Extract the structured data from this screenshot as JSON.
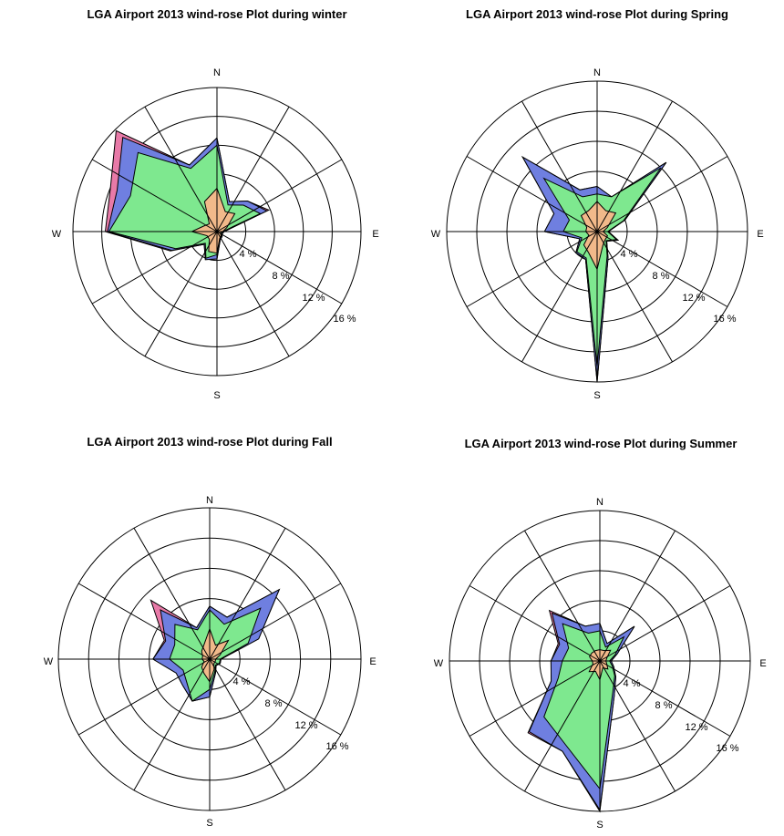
{
  "chart_data": [
    {
      "type": "wind-rose",
      "title": "LGA Airport 2013 wind-rose Plot during winter",
      "directions": [
        "N",
        "E",
        "S",
        "W"
      ],
      "ring_labels": [
        "4 %",
        "8 %",
        "12 %",
        "16 %"
      ],
      "rmax": 20,
      "fill_colors": [
        "#e87aa8",
        "#6f7fe0",
        "#7ee88f",
        "#f1b98a"
      ],
      "series": [
        {
          "values": [
            13.0,
            4.5,
            6.0,
            7.8,
            1.0,
            0.8,
            1.0,
            1.2,
            3.8,
            4.2,
            2.5,
            7.0,
            15.5,
            16.0,
            19.8,
            10.0
          ]
        },
        {
          "values": [
            13.0,
            4.5,
            6.0,
            7.5,
            1.0,
            0.8,
            1.0,
            1.2,
            3.8,
            4.2,
            2.5,
            6.8,
            15.2,
            15.0,
            18.5,
            10.0
          ]
        },
        {
          "values": [
            12.0,
            4.0,
            5.2,
            6.5,
            0.8,
            0.7,
            0.9,
            1.0,
            3.2,
            4.0,
            2.3,
            6.2,
            15.0,
            13.0,
            15.5,
            9.5
          ]
        },
        {
          "values": [
            6.0,
            3.0,
            3.5,
            1.5,
            0.8,
            0.5,
            0.8,
            1.0,
            3.0,
            3.0,
            1.5,
            1.5,
            3.5,
            2.0,
            1.5,
            4.5
          ]
        }
      ]
    },
    {
      "type": "wind-rose",
      "title": "LGA Airport 2013 wind-rose Plot during Spring",
      "directions": [
        "N",
        "E",
        "S",
        "W"
      ],
      "ring_labels": [
        "4 %",
        "8 %",
        "12 %",
        "16 %"
      ],
      "rmax": 20,
      "fill_colors": [
        "#e87aa8",
        "#6f7fe0",
        "#7ee88f",
        "#f1b98a"
      ],
      "series": [
        {
          "values": [
            6.0,
            5.0,
            13.0,
            4.0,
            1.5,
            3.0,
            1.8,
            3.8,
            20.0,
            4.0,
            4.0,
            2.5,
            7.0,
            6.2,
            14.0,
            6.0
          ]
        },
        {
          "values": [
            6.0,
            5.0,
            13.0,
            4.0,
            1.5,
            3.0,
            1.8,
            3.8,
            20.0,
            4.0,
            4.0,
            2.5,
            7.0,
            6.2,
            14.0,
            6.0
          ]
        },
        {
          "values": [
            5.0,
            5.0,
            12.0,
            3.8,
            1.4,
            2.8,
            1.7,
            3.5,
            18.0,
            3.8,
            3.8,
            2.2,
            4.5,
            4.0,
            10.0,
            5.0
          ]
        },
        {
          "values": [
            4.0,
            3.0,
            3.5,
            1.5,
            0.8,
            1.5,
            1.5,
            2.0,
            5.0,
            3.0,
            2.5,
            1.2,
            1.5,
            1.5,
            3.0,
            3.0
          ]
        }
      ]
    },
    {
      "type": "wind-rose",
      "title": "LGA Airport 2013 wind-rose Plot during Fall",
      "directions": [
        "N",
        "E",
        "S",
        "W"
      ],
      "ring_labels": [
        "4 %",
        "8 %",
        "12 %",
        "16 %"
      ],
      "rmax": 20,
      "fill_colors": [
        "#e87aa8",
        "#6f7fe0",
        "#7ee88f",
        "#f1b98a"
      ],
      "series": [
        {
          "values": [
            7.0,
            6.0,
            13.0,
            7.0,
            1.5,
            1.5,
            1.2,
            2.0,
            5.0,
            6.0,
            5.0,
            4.8,
            7.5,
            6.5,
            11.0,
            4.5
          ]
        },
        {
          "values": [
            7.0,
            6.0,
            13.0,
            7.0,
            1.5,
            1.5,
            1.2,
            2.0,
            5.0,
            6.0,
            5.0,
            4.8,
            7.5,
            6.3,
            9.2,
            4.5
          ]
        },
        {
          "values": [
            6.5,
            5.0,
            9.5,
            5.5,
            1.4,
            1.4,
            1.1,
            1.8,
            4.0,
            6.0,
            4.3,
            3.8,
            5.3,
            5.0,
            6.5,
            4.2
          ]
        },
        {
          "values": [
            4.0,
            2.0,
            3.5,
            1.5,
            0.8,
            0.8,
            0.8,
            1.5,
            3.0,
            2.0,
            1.5,
            0.8,
            1.0,
            1.0,
            1.5,
            2.0
          ]
        }
      ]
    },
    {
      "type": "wind-rose",
      "title": "LGA Airport 2013 wind-rose Plot during Summer",
      "directions": [
        "N",
        "E",
        "S",
        "W"
      ],
      "ring_labels": [
        "4 %",
        "8 %",
        "12 %",
        "16 %"
      ],
      "rmax": 20,
      "fill_colors": [
        "#e87aa8",
        "#6f7fe0",
        "#7ee88f",
        "#f1b98a"
      ],
      "series": [
        {
          "values": [
            5.0,
            2.5,
            6.5,
            2.5,
            1.5,
            2.0,
            3.0,
            5.0,
            20.0,
            13.0,
            13.5,
            7.0,
            6.5,
            6.0,
            9.5,
            5.0
          ]
        },
        {
          "values": [
            5.0,
            2.5,
            6.5,
            2.5,
            1.5,
            2.0,
            3.0,
            5.0,
            19.8,
            13.0,
            13.3,
            7.0,
            6.5,
            5.8,
            9.0,
            5.0
          ]
        },
        {
          "values": [
            4.0,
            2.0,
            4.5,
            2.2,
            1.3,
            1.8,
            2.8,
            4.5,
            17.0,
            12.0,
            10.5,
            6.0,
            5.0,
            4.5,
            7.0,
            4.0
          ]
        },
        {
          "values": [
            1.5,
            1.5,
            2.0,
            1.0,
            0.8,
            1.0,
            1.5,
            1.0,
            2.5,
            1.5,
            2.0,
            1.0,
            1.0,
            1.5,
            1.5,
            1.5
          ]
        }
      ]
    }
  ]
}
